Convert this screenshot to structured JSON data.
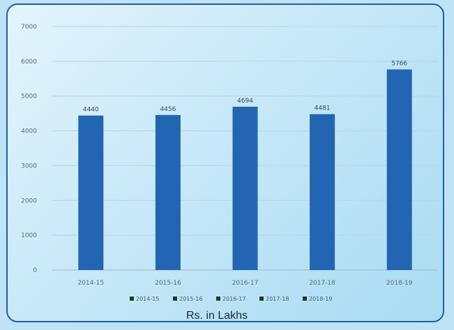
{
  "chart_data": {
    "type": "bar",
    "categories": [
      "2014-15",
      "2015-16",
      "2016-17",
      "2017-18",
      "2018-19"
    ],
    "values": [
      4440,
      4456,
      4694,
      4481,
      5766
    ],
    "data_labels": [
      "4440",
      "4456",
      "4694",
      "4481",
      "5766"
    ],
    "y_ticks": [
      "0",
      "1000",
      "2000",
      "3000",
      "4000",
      "5000",
      "6000",
      "7000"
    ],
    "ylim": [
      0,
      7000
    ],
    "legend": [
      "2014-15",
      "2015-16",
      "2016-17",
      "2017-18",
      "2018-19"
    ],
    "legend_placement": "bottom",
    "caption": "Rs. in Lakhs",
    "grid": true,
    "bar_color": "#2265b2",
    "legend_marker_color": "#1f3b2a"
  }
}
